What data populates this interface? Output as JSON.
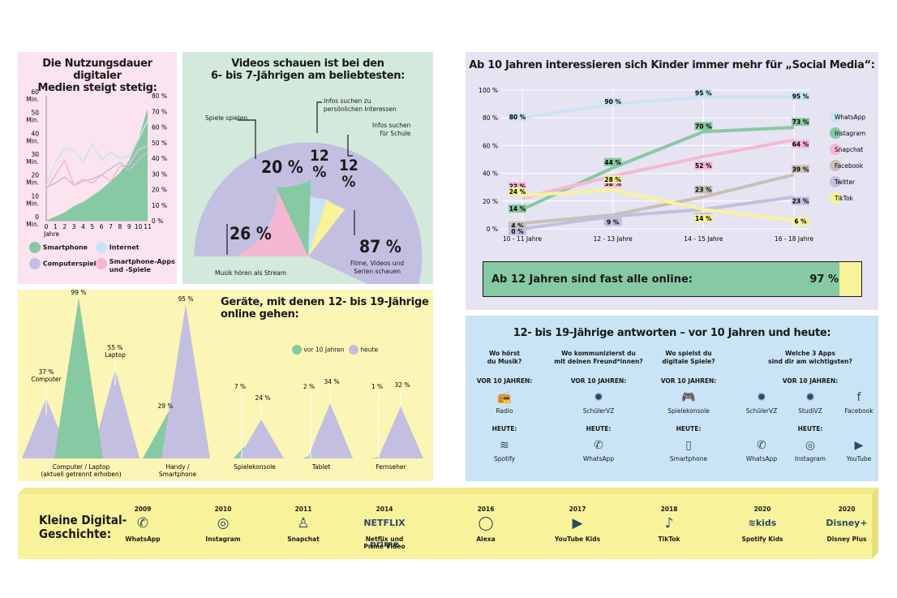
{
  "p1": {
    "title_l1": "Die Nutzungsdauer digitaler",
    "title_l2": "Medien steigt stetig:",
    "left_ticks": [
      "60",
      "Min.",
      "50",
      "Min.",
      "40",
      "Min.",
      "30",
      "Min.",
      "20",
      "Min.",
      "10",
      "Min.",
      "0",
      "Min."
    ],
    "left_tick_values": [
      "60",
      "50",
      "40",
      "30",
      "20",
      "10",
      "0"
    ],
    "min_label": "Min.",
    "right_ticks": [
      "80 %",
      "70 %",
      "60 %",
      "50 %",
      "40 %",
      "30 %",
      "20 %",
      "10 %",
      "0 %"
    ],
    "x_ticks": [
      "0",
      "1",
      "2",
      "3",
      "4",
      "5",
      "6",
      "7",
      "8",
      "9",
      "10",
      "11"
    ],
    "x_unit": "Jahre",
    "legend": {
      "smartphone": "Smartphone",
      "internet": "Internet",
      "computer": "Computerspiele",
      "apps_l1": "Smartphone-Apps",
      "apps_l2": "und -Spiele"
    }
  },
  "p2": {
    "title_l1": "Videos schauen ist bei den",
    "title_l2": "6- bis 7-Jährigen am beliebtesten:",
    "lbl_games": "Spiele spielen",
    "pct_games": "20 %",
    "lbl_interest_l1": "Infos suchen zu",
    "lbl_interest_l2": "persönlichen Interessen",
    "pct_interest_a": "12",
    "pct_interest_b": "%",
    "lbl_school_l1": "Infos suchen",
    "lbl_school_l2": "für Schule",
    "pct_school_a": "12",
    "pct_school_b": "%",
    "pct_music": "26 %",
    "lbl_music": "Musik hören als Stream",
    "pct_video": "87 %",
    "lbl_video_l1": "Filme, Videos und",
    "lbl_video_l2": "Serien schauen"
  },
  "p3": {
    "title": "Ab 10 Jahren interessieren sich Kinder immer mehr für „Social Media“:",
    "banner_text": "Ab 12 Jahren sind fast alle online:",
    "banner_value": "97 %",
    "banner_fraction": 0.97
  },
  "p4": {
    "title_l1": "Geräte, mit denen 12- bis 19-Jährige",
    "title_l2": "online gehen:",
    "legend_before": "vor 10 Jahren",
    "legend_today": "heute"
  },
  "p5": {
    "title": "12- bis 19-Jährige antworten – vor 10 Jahren und heute:",
    "cols": [
      {
        "q1": "Wo hörst",
        "q2": "du Musik?",
        "before": "VOR 10 JAHREN:",
        "today": "HEUTE:",
        "b": [
          {
            "label": "Radio",
            "icon": "radio-icon",
            "glyph": "📻"
          }
        ],
        "t": [
          {
            "label": "Spotify",
            "icon": "spotify-icon",
            "glyph": "≋"
          }
        ]
      },
      {
        "q1": "Wo kommunizierst du",
        "q2": "mit deinen Freund*innen?",
        "before": "VOR 10 JAHREN:",
        "today": "HEUTE:",
        "b": [
          {
            "label": "SchülerVZ",
            "icon": "schuelervz-icon",
            "glyph": "✹"
          }
        ],
        "t": [
          {
            "label": "WhatsApp",
            "icon": "whatsapp-icon",
            "glyph": "✆"
          }
        ]
      },
      {
        "q1": "Wo spielst du",
        "q2": "digitale Spiele?",
        "before": "VOR 10 JAHREN:",
        "today": "HEUTE:",
        "b": [
          {
            "label": "Spielekonsole",
            "icon": "gamepad-icon",
            "glyph": "🎮"
          }
        ],
        "t": [
          {
            "label": "Smartphone",
            "icon": "smartphone-icon",
            "glyph": "▯"
          }
        ]
      },
      {
        "q1": "Welche 3 Apps",
        "q2": "sind dir am wichtigsten?",
        "before": "VOR 10 JAHREN:",
        "today": "HEUTE:",
        "b": [
          {
            "label": "SchülerVZ",
            "icon": "schuelervz-icon",
            "glyph": "✹"
          },
          {
            "label": "StudiVZ",
            "icon": "studivz-icon",
            "glyph": "✹"
          },
          {
            "label": "Facebook",
            "icon": "facebook-icon",
            "glyph": "f"
          }
        ],
        "t": [
          {
            "label": "WhatsApp",
            "icon": "whatsapp-icon",
            "glyph": "✆"
          },
          {
            "label": "Instagram",
            "icon": "instagram-icon",
            "glyph": "◎"
          },
          {
            "label": "YouTube",
            "icon": "youtube-icon",
            "glyph": "▶"
          }
        ]
      }
    ]
  },
  "p6": {
    "title_l1": "Kleine Digital-",
    "title_l2": "Geschichte:",
    "items": [
      {
        "year": "2009",
        "label": "WhatsApp",
        "label2": "",
        "icon": "whatsapp-icon",
        "glyph": "✆"
      },
      {
        "year": "2010",
        "label": "Instagram",
        "label2": "",
        "icon": "instagram-icon",
        "glyph": "◎"
      },
      {
        "year": "2011",
        "label": "Snapchat",
        "label2": "",
        "icon": "snapchat-icon",
        "glyph": "♙"
      },
      {
        "year": "2014",
        "label": "Netflix und",
        "label2": "Prime Video",
        "icon": "netflix-prime-icon",
        "glyph": "NETFLIX",
        "glyph2": "prime"
      },
      {
        "year": "2016",
        "label": "Alexa",
        "label2": "",
        "icon": "alexa-icon",
        "glyph": "◯"
      },
      {
        "year": "2017",
        "label": "YouTube Kids",
        "label2": "",
        "icon": "youtube-kids-icon",
        "glyph": "▶"
      },
      {
        "year": "2018",
        "label": "TikTok",
        "label2": "",
        "icon": "tiktok-icon",
        "glyph": "♪"
      },
      {
        "year": "2020",
        "label": "Spotify Kids",
        "label2": "",
        "icon": "spotify-kids-icon",
        "glyph": "≋kids"
      },
      {
        "year": "2020",
        "label": "Disney Plus",
        "label2": "",
        "icon": "disney-plus-icon",
        "glyph": "Disney+"
      }
    ]
  },
  "colors": {
    "green": "#86c9a3",
    "blue": "#c9e4f5",
    "purple": "#c3bfe0",
    "pink": "#f4b8d3",
    "yellow": "#f8f29a",
    "grey": "#c9c0b6"
  },
  "chart_data": [
    {
      "type": "area",
      "title": "Die Nutzungsdauer digitaler Medien steigt stetig:",
      "xlabel": "Jahre",
      "x": [
        0,
        1,
        2,
        3,
        4,
        5,
        6,
        7,
        8,
        9,
        10,
        11
      ],
      "ylim_left": [
        0,
        60
      ],
      "ylim_right": [
        0,
        80
      ],
      "series": [
        {
          "name": "Smartphone",
          "values": [
            0,
            2,
            4,
            7,
            9,
            12,
            15,
            19,
            23,
            29,
            39,
            54
          ]
        },
        {
          "name": "Internet",
          "values": [
            17,
            28,
            35,
            34,
            28,
            37,
            29,
            33,
            30,
            31,
            39,
            48
          ]
        },
        {
          "name": "Computerspiele",
          "values": [
            16,
            18,
            21,
            17,
            19,
            20,
            22,
            25,
            28,
            24,
            29,
            33
          ]
        },
        {
          "name": "Smartphone-Apps und -Spiele",
          "values": [
            15,
            22,
            29,
            17,
            20,
            18,
            22,
            19,
            26,
            27,
            34,
            36
          ]
        }
      ]
    },
    {
      "type": "pie",
      "title": "Videos schauen ist bei den 6- bis 7-Jährigen am beliebtesten:",
      "categories": [
        "Musik hören als Stream",
        "Spiele spielen",
        "Infos suchen zu persönlichen Interessen",
        "Infos suchen für Schule",
        "Filme, Videos und Serien schauen"
      ],
      "values": [
        26,
        20,
        12,
        12,
        87
      ]
    },
    {
      "type": "line",
      "title": "Ab 10 Jahren interessieren sich Kinder immer mehr für „Social Media“:",
      "categories": [
        "10 - 11 Jahre",
        "12 - 13 Jahre",
        "14 - 15 Jahre",
        "16 - 18 Jahre"
      ],
      "yticks": [
        "0 %",
        "20 %",
        "40 %",
        "60 %",
        "80 %",
        "100 %"
      ],
      "ylim": [
        0,
        100
      ],
      "series": [
        {
          "name": "WhatsApp",
          "values": [
            80,
            90,
            95,
            95
          ],
          "labels": [
            "80 %",
            "90 %",
            "95 %",
            "95 %"
          ]
        },
        {
          "name": "Instagram",
          "values": [
            14,
            44,
            70,
            73
          ],
          "labels": [
            "14 %",
            "44 %",
            "70 %",
            "73 %"
          ]
        },
        {
          "name": "Snapchat",
          "values": [
            22,
            38,
            52,
            64
          ],
          "labels": [
            "22 %",
            "38 %",
            "52 %",
            "64 %"
          ]
        },
        {
          "name": "Facebook",
          "values": [
            4,
            10,
            23,
            39
          ],
          "labels": [
            "4 %",
            "10 %",
            "23 %",
            "39 %"
          ]
        },
        {
          "name": "Twitter",
          "values": [
            0,
            9,
            14,
            23
          ],
          "labels": [
            "0 %",
            "9 %",
            "14 %",
            "23 %"
          ]
        },
        {
          "name": "TikTok",
          "values": [
            24,
            28,
            14,
            6
          ],
          "labels": [
            "24 %",
            "28 %",
            "14 %",
            "6 %"
          ]
        }
      ]
    },
    {
      "type": "bar",
      "title": "Geräte, mit denen 12- bis 19-Jährige online gehen:",
      "categories": [
        "Computer / Laptop (aktuell getrennt erhoben)",
        "Handy / Smartphone",
        "Spielekonsole",
        "Tablet",
        "Fernseher"
      ],
      "series": [
        {
          "name": "vor 10 Jahren",
          "values": [
            99,
            29,
            7,
            2,
            1
          ],
          "labels": [
            "99 %",
            "29 %",
            "7 %",
            "2 %",
            "1 %"
          ]
        },
        {
          "name": "heute",
          "values": [
            37,
            95,
            24,
            34,
            32
          ],
          "labels": [
            "37 %",
            "95 %",
            "24 %",
            "34 %",
            "32 %"
          ],
          "extra": {
            "value": 55,
            "label": "55 %",
            "name": "Laptop"
          }
        }
      ],
      "labels_today_names": [
        "Computer",
        "",
        "",
        "",
        ""
      ],
      "cat_l1": [
        "Computer / Laptop",
        "Handy /",
        "Spielekonsole",
        "Tablet",
        "Fernseher"
      ],
      "cat_l2": [
        "(aktuell getrennt erhoben)",
        "Smartphone",
        "",
        "",
        ""
      ],
      "laptop_name": "Laptop"
    }
  ]
}
